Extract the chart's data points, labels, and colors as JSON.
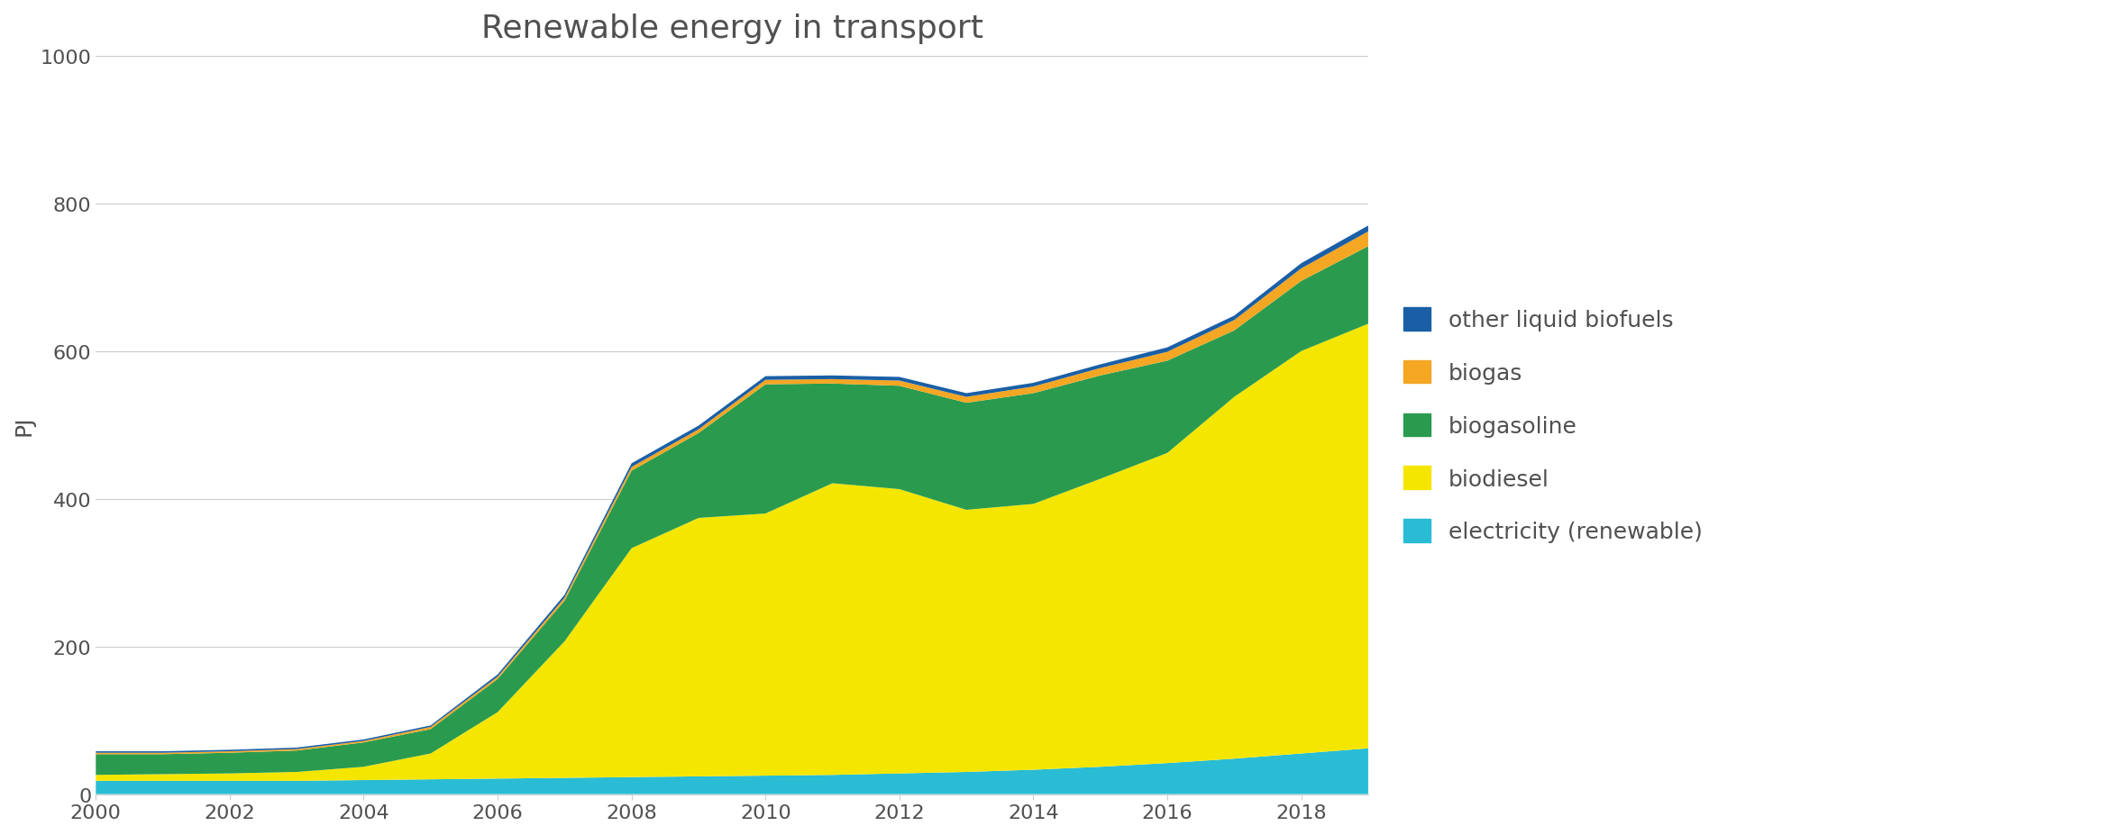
{
  "title": "Renewable energy in transport",
  "ylabel": "PJ",
  "years": [
    2000,
    2001,
    2002,
    2003,
    2004,
    2005,
    2006,
    2007,
    2008,
    2009,
    2010,
    2011,
    2012,
    2013,
    2014,
    2015,
    2016,
    2017,
    2018,
    2019
  ],
  "electricity_renewable": [
    18,
    18,
    18,
    18,
    19,
    20,
    21,
    22,
    23,
    24,
    25,
    26,
    28,
    30,
    33,
    37,
    42,
    48,
    55,
    62
  ],
  "biodiesel": [
    8,
    9,
    10,
    12,
    18,
    35,
    90,
    185,
    310,
    350,
    355,
    395,
    385,
    355,
    360,
    390,
    420,
    490,
    545,
    575
  ],
  "biogasoline": [
    28,
    27,
    28,
    29,
    33,
    33,
    45,
    55,
    105,
    115,
    175,
    135,
    140,
    145,
    150,
    140,
    125,
    90,
    95,
    105
  ],
  "biogas": [
    2,
    2,
    2,
    2,
    2,
    3,
    3,
    4,
    5,
    5,
    6,
    6,
    7,
    8,
    9,
    10,
    12,
    14,
    17,
    20
  ],
  "other_liquid_biofuels": [
    2,
    2,
    2,
    2,
    2,
    2,
    3,
    4,
    5,
    5,
    5,
    5,
    5,
    5,
    5,
    5,
    6,
    6,
    7,
    8
  ],
  "colors": {
    "electricity_renewable": "#29bcd4",
    "biodiesel": "#f5e600",
    "biogasoline": "#2a9b4e",
    "biogas": "#f5a623",
    "other_liquid_biofuels": "#1a5fa6"
  },
  "legend_labels": [
    "other liquid biofuels",
    "biogas",
    "biogasoline",
    "biodiesel",
    "electricity (renewable)"
  ],
  "ylim": [
    0,
    1000
  ],
  "yticks": [
    0,
    200,
    400,
    600,
    800,
    1000
  ],
  "xticks": [
    2000,
    2002,
    2004,
    2006,
    2008,
    2010,
    2012,
    2014,
    2016,
    2018
  ],
  "background_color": "#ffffff",
  "title_fontsize": 26,
  "axis_fontsize": 18,
  "tick_fontsize": 16,
  "legend_fontsize": 18
}
